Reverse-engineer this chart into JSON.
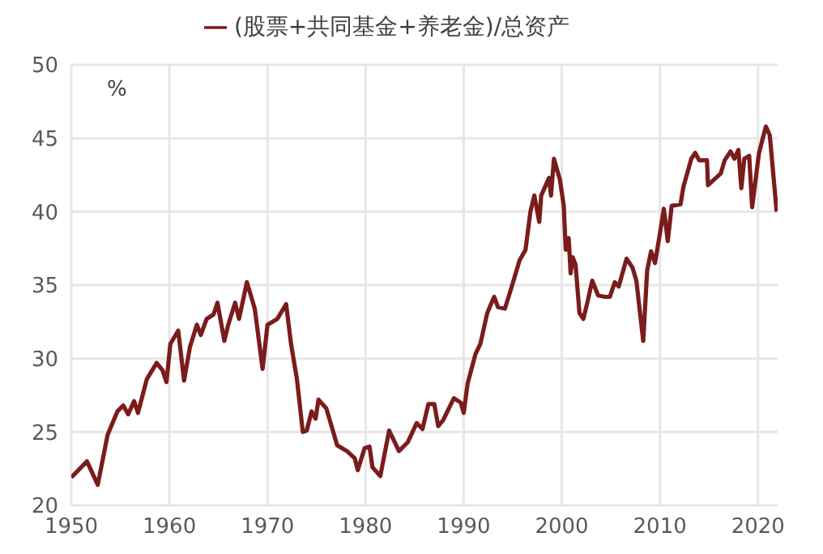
{
  "chart_data": {
    "type": "line",
    "xlim": [
      1950,
      2022
    ],
    "xticks": [
      1950,
      1960,
      1970,
      1980,
      1990,
      2000,
      2010,
      2020
    ],
    "ylim": [
      20,
      50
    ],
    "yticks": [
      20,
      25,
      30,
      35,
      40,
      45,
      50
    ],
    "grid": true,
    "legend": "top",
    "annotations": [
      "%"
    ],
    "x": [
      1950.0,
      1951.6,
      1952.7,
      1953.7,
      1954.7,
      1955.3,
      1955.8,
      1956.4,
      1956.8,
      1957.7,
      1958.7,
      1959.3,
      1959.7,
      1960.1,
      1960.9,
      1961.5,
      1962.1,
      1962.8,
      1963.2,
      1963.8,
      1964.5,
      1964.9,
      1965.6,
      1966.0,
      1966.7,
      1967.1,
      1967.9,
      1968.7,
      1969.5,
      1970.0,
      1971.0,
      1971.9,
      1972.4,
      1973.0,
      1973.6,
      1974.0,
      1974.5,
      1974.9,
      1975.2,
      1976.0,
      1977.1,
      1978.1,
      1978.9,
      1979.2,
      1979.9,
      1980.4,
      1980.7,
      1981.5,
      1982.4,
      1983.4,
      1984.3,
      1985.2,
      1985.8,
      1986.4,
      1987.0,
      1987.4,
      1987.9,
      1989.0,
      1989.7,
      1990.0,
      1990.4,
      1991.2,
      1991.7,
      1992.4,
      1993.1,
      1993.5,
      1994.2,
      1994.9,
      1995.7,
      1996.3,
      1996.8,
      1997.2,
      1997.7,
      1997.9,
      1998.7,
      1998.9,
      1999.2,
      1999.8,
      2000.2,
      2000.4,
      2000.7,
      2000.9,
      2001.1,
      2001.4,
      2001.8,
      2002.2,
      2002.6,
      2003.1,
      2003.7,
      2004.4,
      2004.9,
      2005.4,
      2005.8,
      2006.6,
      2007.2,
      2007.6,
      2008.3,
      2008.7,
      2009.1,
      2009.5,
      2010.0,
      2010.4,
      2010.8,
      2011.2,
      2012.1,
      2012.4,
      2013.2,
      2013.6,
      2014.0,
      2014.8,
      2014.9,
      2016.2,
      2016.6,
      2017.2,
      2017.6,
      2018.0,
      2018.3,
      2018.6,
      2019.1,
      2019.4,
      2020.1,
      2020.8,
      2021.2,
      2021.9
    ],
    "series": [
      {
        "name": "(股票+共同基金+养老金)/总资产",
        "color": "#7b1c1c",
        "values": [
          21.9,
          23.0,
          21.4,
          24.8,
          26.4,
          26.8,
          26.2,
          27.1,
          26.3,
          28.6,
          29.7,
          29.2,
          28.4,
          31.0,
          31.9,
          28.5,
          30.8,
          32.3,
          31.6,
          32.7,
          33.0,
          33.8,
          31.2,
          32.3,
          33.8,
          32.7,
          35.2,
          33.4,
          29.3,
          32.3,
          32.7,
          33.7,
          31.0,
          28.6,
          25.0,
          25.1,
          26.4,
          25.9,
          27.2,
          26.6,
          24.1,
          23.7,
          23.2,
          22.4,
          23.9,
          24.0,
          22.6,
          22.0,
          25.1,
          23.7,
          24.3,
          25.6,
          25.2,
          26.9,
          26.9,
          25.4,
          25.8,
          27.3,
          27.0,
          26.3,
          28.3,
          30.3,
          31.0,
          33.1,
          34.2,
          33.5,
          33.4,
          34.9,
          36.7,
          37.4,
          40.0,
          41.1,
          39.3,
          41.1,
          42.3,
          41.1,
          43.6,
          42.2,
          40.4,
          37.4,
          38.2,
          35.8,
          36.9,
          36.4,
          33.1,
          32.7,
          33.8,
          35.3,
          34.3,
          34.2,
          34.2,
          35.2,
          34.9,
          36.8,
          36.2,
          35.3,
          31.2,
          36.0,
          37.3,
          36.5,
          38.5,
          40.2,
          38.0,
          40.4,
          40.5,
          41.7,
          43.6,
          44.0,
          43.5,
          43.5,
          41.8,
          42.6,
          43.5,
          44.1,
          43.6,
          44.2,
          41.6,
          43.6,
          43.8,
          40.3,
          44.0,
          45.8,
          45.2,
          40.0
        ]
      }
    ]
  }
}
